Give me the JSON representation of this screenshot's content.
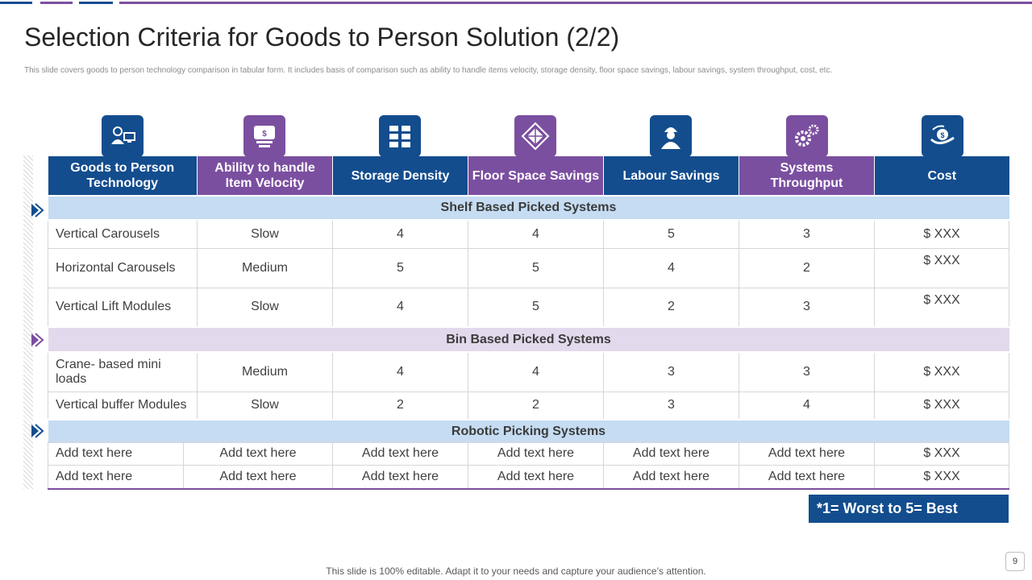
{
  "title": "Selection Criteria for Goods to Person Solution (2/2)",
  "subtitle": "This slide covers goods to person technology comparison in tabular form. It includes basis of comparison such as ability  to handle items velocity, storage density, floor space savings, labour savings, system throughput, cost, etc.",
  "colors": {
    "blue": "#134d8e",
    "purple": "#7b4fa0",
    "section_blue": "#c5dcf2",
    "section_purple": "#e3d9ec"
  },
  "icons": [
    "person-computer-icon",
    "money-box-icon",
    "storage-drawers-icon",
    "floor-diamond-icon",
    "worker-helmet-icon",
    "gears-icon",
    "hand-coin-icon"
  ],
  "headers": [
    "Goods to Person Technology",
    "Ability to handle Item Velocity",
    "Storage Density",
    "Floor Space Savings",
    "Labour Savings",
    "Systems Throughput",
    "Cost"
  ],
  "sections": [
    {
      "title": "Shelf Based Picked Systems",
      "rows": [
        [
          "Vertical Carousels",
          "Slow",
          "4",
          "4",
          "5",
          "3",
          "$ XXX"
        ],
        [
          "Horizontal Carousels",
          "Medium",
          "5",
          "5",
          "4",
          "2",
          "$ XXX"
        ],
        [
          "Vertical Lift Modules",
          "Slow",
          "4",
          "5",
          "2",
          "3",
          "$ XXX"
        ]
      ]
    },
    {
      "title": "Bin Based Picked Systems",
      "rows": [
        [
          "Crane- based mini loads",
          "Medium",
          "4",
          "4",
          "3",
          "3",
          "$ XXX"
        ],
        [
          "Vertical buffer Modules",
          "Slow",
          "2",
          "2",
          "3",
          "4",
          "$ XXX"
        ]
      ]
    },
    {
      "title": "Robotic Picking Systems",
      "rows": [
        [
          "Add text here",
          "Add text here",
          "Add text here",
          "Add text here",
          "Add text here",
          "Add text here",
          "$ XXX"
        ],
        [
          "Add text here",
          "Add text here",
          "Add text here",
          "Add text here",
          "Add text here",
          "Add text here",
          "$ XXX"
        ]
      ]
    }
  ],
  "legend": "*1= Worst to 5= Best",
  "footer": "This slide is 100% editable. Adapt it to your needs and capture your audience’s attention.",
  "page_number": "9"
}
